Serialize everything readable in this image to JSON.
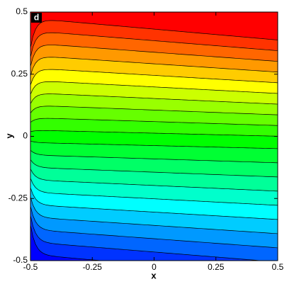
{
  "chart_data": {
    "type": "contour",
    "panel_label": "d",
    "x_label": "x",
    "y_label": "y",
    "xlim": [
      -0.5,
      0.5
    ],
    "ylim": [
      -0.5,
      0.5
    ],
    "xticks": [
      -0.5,
      -0.25,
      0,
      0.25,
      0.5
    ],
    "yticks": [
      -0.5,
      -0.25,
      0,
      0.25,
      0.5
    ]
  }
}
